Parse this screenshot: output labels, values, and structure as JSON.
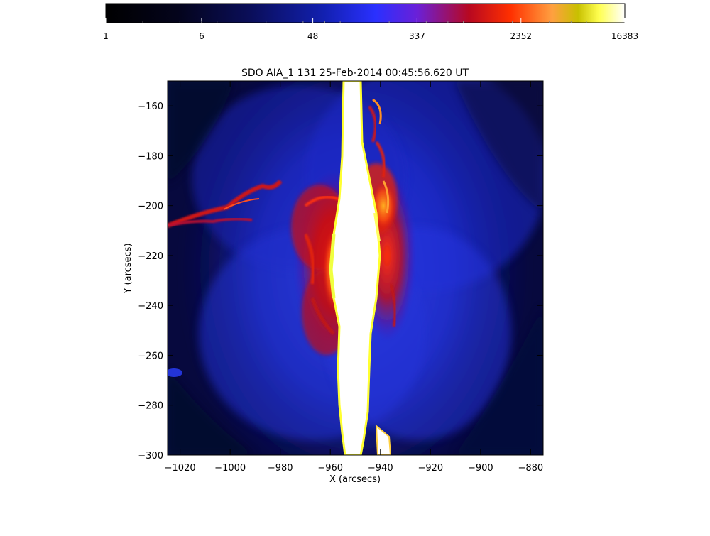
{
  "image": {
    "title": "SDO AIA_1 131 25-Feb-2014 00:45:56.620 UT",
    "x_label": "X (arcsecs)",
    "y_label": "Y (arcsecs)",
    "x_ticks": [
      "-1020",
      "-1000",
      "-980",
      "-960",
      "-940",
      "-920",
      "-900",
      "-880"
    ],
    "y_ticks": [
      "-160",
      "-180",
      "-200",
      "-220",
      "-240",
      "-260",
      "-280",
      "-300"
    ],
    "x_range": [
      -1025,
      -875
    ],
    "y_range": [
      -300,
      -150
    ],
    "colorbar": {
      "scale": "log",
      "ticks": [
        "1",
        "6",
        "48",
        "337",
        "2352",
        "16383"
      ],
      "range": [
        1,
        16383
      ],
      "colors": [
        "#000000",
        "#06062a",
        "#0b0f66",
        "#1826c8",
        "#3a30ff",
        "#8a18c8",
        "#c80818",
        "#ff2800",
        "#ff9000",
        "#c8c800",
        "#ffff40",
        "#ffffff"
      ]
    },
    "colors": {
      "background": "#06083a",
      "mid_blue": "#1c2ad8",
      "bright_blue": "#3448ff",
      "red": "#d81008",
      "orange": "#ff6010",
      "yellow": "#ffff30",
      "white": "#ffffff"
    }
  }
}
